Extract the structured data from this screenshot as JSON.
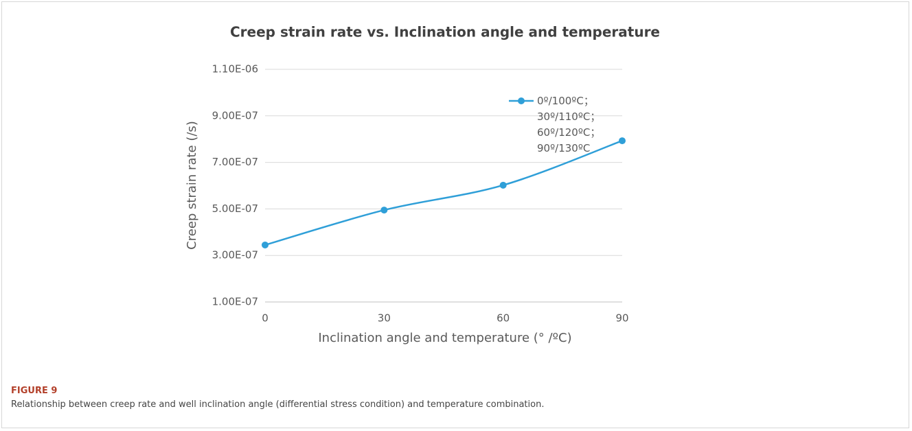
{
  "chart_data": {
    "type": "line",
    "title": "Creep strain rate vs. Inclination angle and temperature",
    "x_label": "Inclination angle and temperature (° /ºC)",
    "y_label": "Creep strain rate (/s)",
    "x": [
      0,
      30,
      60,
      90
    ],
    "series": [
      {
        "name": "0º/100ºC；\n30º/110ºC；\n60º/120ºC；\n90º/130ºC",
        "color": "#2f9fd8",
        "values": [
          3.45e-07,
          4.95e-07,
          6.02e-07,
          7.93e-07
        ]
      }
    ],
    "xlim": [
      0,
      90
    ],
    "xticks": [
      0,
      30,
      60,
      90
    ],
    "ylim": [
      1e-07,
      1.1e-06
    ],
    "yticks": [
      {
        "value": 1e-07,
        "label": "1.00E-07"
      },
      {
        "value": 3e-07,
        "label": "3.00E-07"
      },
      {
        "value": 5e-07,
        "label": "5.00E-07"
      },
      {
        "value": 7e-07,
        "label": "7.00E-07"
      },
      {
        "value": 9e-07,
        "label": "9.00E-07"
      },
      {
        "value": 1.1e-06,
        "label": "1.10E-06"
      }
    ],
    "grid": true,
    "legend": "right"
  },
  "caption": {
    "label": "FIGURE 9",
    "text": "Relationship between creep rate and well inclination angle (differential stress condition) and temperature combination."
  }
}
